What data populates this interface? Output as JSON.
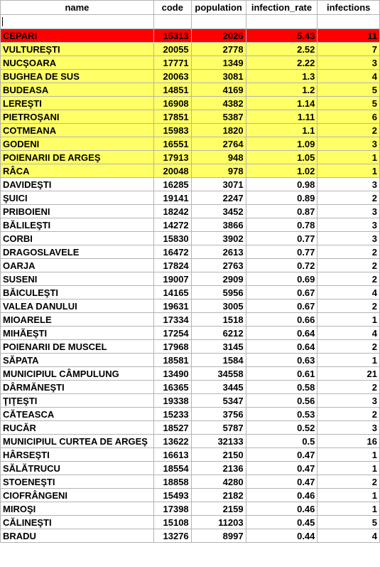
{
  "headers": [
    "name",
    "code",
    "population",
    "infection_rate",
    "infections"
  ],
  "colors": {
    "highlight_red": "#ff0000",
    "highlight_yellow": "#ffff66",
    "grid": "#b4b4b4"
  },
  "rows": [
    {
      "name": "CEPARI",
      "code": "15313",
      "population": "2026",
      "infection_rate": "5.43",
      "infections": "11",
      "highlight": "red"
    },
    {
      "name": "VULTUREŞTI",
      "code": "20055",
      "population": "2778",
      "infection_rate": "2.52",
      "infections": "7",
      "highlight": "yellow"
    },
    {
      "name": "NUCŞOARA",
      "code": "17771",
      "population": "1349",
      "infection_rate": "2.22",
      "infections": "3",
      "highlight": "yellow"
    },
    {
      "name": "BUGHEA DE SUS",
      "code": "20063",
      "population": "3081",
      "infection_rate": "1.3",
      "infections": "4",
      "highlight": "yellow"
    },
    {
      "name": "BUDEASA",
      "code": "14851",
      "population": "4169",
      "infection_rate": "1.2",
      "infections": "5",
      "highlight": "yellow"
    },
    {
      "name": "LEREŞTI",
      "code": "16908",
      "population": "4382",
      "infection_rate": "1.14",
      "infections": "5",
      "highlight": "yellow"
    },
    {
      "name": "PIETROŞANI",
      "code": "17851",
      "population": "5387",
      "infection_rate": "1.11",
      "infections": "6",
      "highlight": "yellow"
    },
    {
      "name": "COTMEANA",
      "code": "15983",
      "population": "1820",
      "infection_rate": "1.1",
      "infections": "2",
      "highlight": "yellow"
    },
    {
      "name": "GODENI",
      "code": "16551",
      "population": "2764",
      "infection_rate": "1.09",
      "infections": "3",
      "highlight": "yellow"
    },
    {
      "name": "POIENARII DE ARGEŞ",
      "code": "17913",
      "population": "948",
      "infection_rate": "1.05",
      "infections": "1",
      "highlight": "yellow"
    },
    {
      "name": "RÂCA",
      "code": "20048",
      "population": "978",
      "infection_rate": "1.02",
      "infections": "1",
      "highlight": "yellow"
    },
    {
      "name": "DAVIDEŞTI",
      "code": "16285",
      "population": "3071",
      "infection_rate": "0.98",
      "infections": "3",
      "highlight": ""
    },
    {
      "name": "ŞUICI",
      "code": "19141",
      "population": "2247",
      "infection_rate": "0.89",
      "infections": "2",
      "highlight": ""
    },
    {
      "name": "PRIBOIENI",
      "code": "18242",
      "population": "3452",
      "infection_rate": "0.87",
      "infections": "3",
      "highlight": ""
    },
    {
      "name": "BĂLILEŞTI",
      "code": "14272",
      "population": "3866",
      "infection_rate": "0.78",
      "infections": "3",
      "highlight": ""
    },
    {
      "name": "CORBI",
      "code": "15830",
      "population": "3902",
      "infection_rate": "0.77",
      "infections": "3",
      "highlight": ""
    },
    {
      "name": "DRAGOSLAVELE",
      "code": "16472",
      "population": "2613",
      "infection_rate": "0.77",
      "infections": "2",
      "highlight": ""
    },
    {
      "name": "OARJA",
      "code": "17824",
      "population": "2763",
      "infection_rate": "0.72",
      "infections": "2",
      "highlight": ""
    },
    {
      "name": "SUSENI",
      "code": "19007",
      "population": "2909",
      "infection_rate": "0.69",
      "infections": "2",
      "highlight": ""
    },
    {
      "name": "BĂICULEŞTI",
      "code": "14165",
      "population": "5956",
      "infection_rate": "0.67",
      "infections": "4",
      "highlight": ""
    },
    {
      "name": "VALEA DANULUI",
      "code": "19631",
      "population": "3005",
      "infection_rate": "0.67",
      "infections": "2",
      "highlight": ""
    },
    {
      "name": "MIOARELE",
      "code": "17334",
      "population": "1518",
      "infection_rate": "0.66",
      "infections": "1",
      "highlight": ""
    },
    {
      "name": "MIHĂEŞTI",
      "code": "17254",
      "population": "6212",
      "infection_rate": "0.64",
      "infections": "4",
      "highlight": ""
    },
    {
      "name": "POIENARII DE MUSCEL",
      "code": "17968",
      "population": "3145",
      "infection_rate": "0.64",
      "infections": "2",
      "highlight": ""
    },
    {
      "name": "SĂPATA",
      "code": "18581",
      "population": "1584",
      "infection_rate": "0.63",
      "infections": "1",
      "highlight": ""
    },
    {
      "name": "MUNICIPIUL CÂMPULUNG",
      "code": "13490",
      "population": "34558",
      "infection_rate": "0.61",
      "infections": "21",
      "highlight": ""
    },
    {
      "name": "DÂRMĂNEŞTI",
      "code": "16365",
      "population": "3445",
      "infection_rate": "0.58",
      "infections": "2",
      "highlight": ""
    },
    {
      "name": "ŢIŢEŞTI",
      "code": "19338",
      "population": "5347",
      "infection_rate": "0.56",
      "infections": "3",
      "highlight": ""
    },
    {
      "name": "CĂTEASCA",
      "code": "15233",
      "population": "3756",
      "infection_rate": "0.53",
      "infections": "2",
      "highlight": ""
    },
    {
      "name": "RUCĂR",
      "code": "18527",
      "population": "5787",
      "infection_rate": "0.52",
      "infections": "3",
      "highlight": ""
    },
    {
      "name": "MUNICIPIUL CURTEA DE ARGEŞ",
      "code": "13622",
      "population": "32133",
      "infection_rate": "0.5",
      "infections": "16",
      "highlight": ""
    },
    {
      "name": "HÂRSEŞTI",
      "code": "16613",
      "population": "2150",
      "infection_rate": "0.47",
      "infections": "1",
      "highlight": ""
    },
    {
      "name": "SĂLĂTRUCU",
      "code": "18554",
      "population": "2136",
      "infection_rate": "0.47",
      "infections": "1",
      "highlight": ""
    },
    {
      "name": "STOENEŞTI",
      "code": "18858",
      "population": "4280",
      "infection_rate": "0.47",
      "infections": "2",
      "highlight": ""
    },
    {
      "name": "CIOFRÂNGENI",
      "code": "15493",
      "population": "2182",
      "infection_rate": "0.46",
      "infections": "1",
      "highlight": ""
    },
    {
      "name": "MIROŞI",
      "code": "17398",
      "population": "2159",
      "infection_rate": "0.46",
      "infections": "1",
      "highlight": ""
    },
    {
      "name": "CĂLINEŞTI",
      "code": "15108",
      "population": "11203",
      "infection_rate": "0.45",
      "infections": "5",
      "highlight": ""
    },
    {
      "name": "BRADU",
      "code": "13276",
      "population": "8997",
      "infection_rate": "0.44",
      "infections": "4",
      "highlight": ""
    }
  ]
}
